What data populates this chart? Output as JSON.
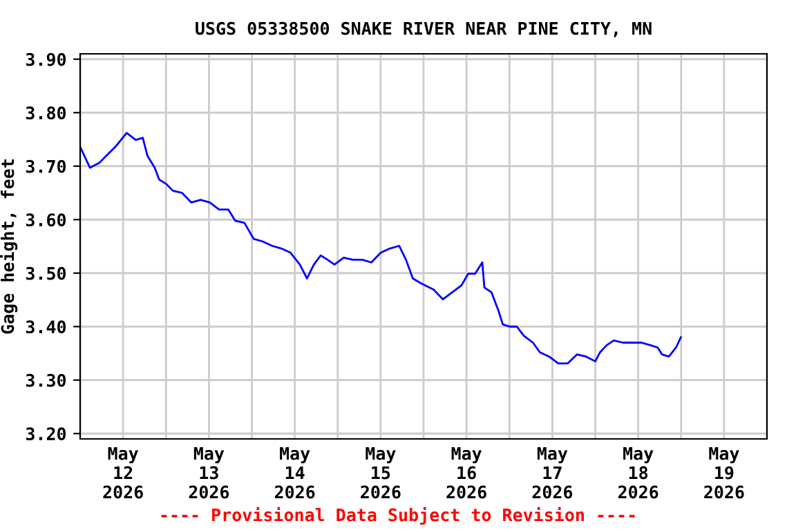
{
  "chart_data": {
    "type": "line",
    "title": "USGS 05338500 SNAKE RIVER NEAR PINE CITY, MN",
    "ylabel": "Gage height, feet",
    "annotations": [
      "---- Provisional Data Subject to Revision ----"
    ],
    "x": [
      "2026-05-12T00:00",
      "2026-05-12T02:45",
      "2026-05-12T05:20",
      "2026-05-12T07:15",
      "2026-05-12T09:50",
      "2026-05-12T13:00",
      "2026-05-12T15:35",
      "2026-05-12T17:30",
      "2026-05-12T18:50",
      "2026-05-12T20:50",
      "2026-05-12T22:05",
      "2026-05-13T00:00",
      "2026-05-13T01:55",
      "2026-05-13T04:30",
      "2026-05-13T07:05",
      "2026-05-13T09:40",
      "2026-05-13T12:15",
      "2026-05-13T14:50",
      "2026-05-13T17:25",
      "2026-05-13T19:20",
      "2026-05-13T21:55",
      "2026-05-14T00:30",
      "2026-05-14T03:05",
      "2026-05-14T05:40",
      "2026-05-14T08:15",
      "2026-05-14T10:50",
      "2026-05-14T13:25",
      "2026-05-14T15:25",
      "2026-05-14T17:20",
      "2026-05-14T19:15",
      "2026-05-14T21:10",
      "2026-05-14T23:05",
      "2026-05-15T01:40",
      "2026-05-15T04:15",
      "2026-05-15T06:50",
      "2026-05-15T09:25",
      "2026-05-15T12:00",
      "2026-05-15T14:35",
      "2026-05-15T17:10",
      "2026-05-15T19:05",
      "2026-05-15T21:00",
      "2026-05-15T23:00",
      "2026-05-16T02:50",
      "2026-05-16T05:25",
      "2026-05-16T08:00",
      "2026-05-16T10:35",
      "2026-05-16T12:30",
      "2026-05-16T14:25",
      "2026-05-16T16:25",
      "2026-05-16T17:00",
      "2026-05-16T19:00",
      "2026-05-16T20:55",
      "2026-05-16T22:10",
      "2026-05-17T00:05",
      "2026-05-17T02:05",
      "2026-05-17T04:00",
      "2026-05-17T06:35",
      "2026-05-17T08:30",
      "2026-05-17T11:05",
      "2026-05-17T13:40",
      "2026-05-17T16:15",
      "2026-05-17T18:55",
      "2026-05-17T21:25",
      "2026-05-18T00:00",
      "2026-05-18T01:20",
      "2026-05-18T03:10",
      "2026-05-18T05:10",
      "2026-05-18T07:45",
      "2026-05-18T10:20",
      "2026-05-18T12:55",
      "2026-05-18T15:30",
      "2026-05-18T17:25",
      "2026-05-18T18:40",
      "2026-05-18T20:35",
      "2026-05-18T22:35",
      "2026-05-18T23:55"
    ],
    "series": [
      {
        "color": "#0000ff",
        "values": [
          3.736,
          3.697,
          3.706,
          3.719,
          3.736,
          3.762,
          3.749,
          3.753,
          3.719,
          3.697,
          3.675,
          3.667,
          3.654,
          3.65,
          3.632,
          3.637,
          3.632,
          3.619,
          3.619,
          3.598,
          3.594,
          3.564,
          3.559,
          3.551,
          3.546,
          3.538,
          3.516,
          3.49,
          3.516,
          3.533,
          3.525,
          3.516,
          3.529,
          3.525,
          3.525,
          3.52,
          3.538,
          3.546,
          3.551,
          3.525,
          3.49,
          3.482,
          3.469,
          3.451,
          3.464,
          3.477,
          3.499,
          3.499,
          3.52,
          3.473,
          3.464,
          3.43,
          3.404,
          3.4,
          3.4,
          3.383,
          3.37,
          3.352,
          3.344,
          3.331,
          3.331,
          3.348,
          3.344,
          3.335,
          3.352,
          3.365,
          3.374,
          3.37,
          3.37,
          3.37,
          3.365,
          3.361,
          3.348,
          3.344,
          3.361,
          3.38
        ]
      }
    ],
    "xlim": [
      "2026-05-12T00:00",
      "2026-05-20T00:00"
    ],
    "xticks": [
      {
        "value": "2026-05-12T00:00",
        "label": null
      },
      {
        "value": "2026-05-12T12:00",
        "label": "May\n12\n2026"
      },
      {
        "value": "2026-05-13T00:00",
        "label": null
      },
      {
        "value": "2026-05-13T12:00",
        "label": "May\n13\n2026"
      },
      {
        "value": "2026-05-14T00:00",
        "label": null
      },
      {
        "value": "2026-05-14T12:00",
        "label": "May\n14\n2026"
      },
      {
        "value": "2026-05-15T00:00",
        "label": null
      },
      {
        "value": "2026-05-15T12:00",
        "label": "May\n15\n2026"
      },
      {
        "value": "2026-05-16T00:00",
        "label": null
      },
      {
        "value": "2026-05-16T12:00",
        "label": "May\n16\n2026"
      },
      {
        "value": "2026-05-17T00:00",
        "label": null
      },
      {
        "value": "2026-05-17T12:00",
        "label": "May\n17\n2026"
      },
      {
        "value": "2026-05-18T00:00",
        "label": null
      },
      {
        "value": "2026-05-18T12:00",
        "label": "May\n18\n2026"
      },
      {
        "value": "2026-05-19T00:00",
        "label": null
      },
      {
        "value": "2026-05-19T12:00",
        "label": "May\n19\n2026"
      },
      {
        "value": "2026-05-20T00:00",
        "label": null
      }
    ],
    "ylim": [
      3.19,
      3.91
    ],
    "yticks": [
      {
        "value": 3.2,
        "label": "3.20"
      },
      {
        "value": 3.3,
        "label": "3.30"
      },
      {
        "value": 3.4,
        "label": "3.40"
      },
      {
        "value": 3.5,
        "label": "3.50"
      },
      {
        "value": 3.6,
        "label": "3.60"
      },
      {
        "value": 3.7,
        "label": "3.70"
      },
      {
        "value": 3.8,
        "label": "3.80"
      },
      {
        "value": 3.9,
        "label": "3.90"
      }
    ],
    "grid": true,
    "legend": false
  }
}
